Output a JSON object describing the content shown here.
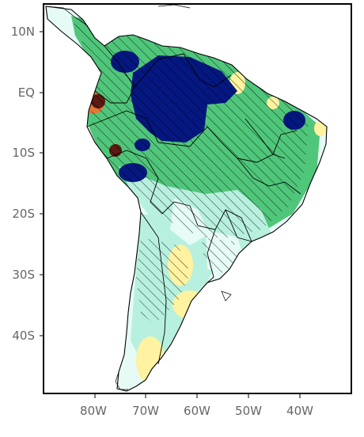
{
  "map": {
    "y_axis_labels": [
      "10N",
      "EQ",
      "10S",
      "20S",
      "30S",
      "40S"
    ],
    "x_axis_labels": [
      "80W",
      "70W",
      "60W",
      "50W",
      "40W"
    ],
    "lon_range": [
      -90,
      -30
    ],
    "lat_range": [
      -50,
      15
    ],
    "colors": {
      "ocean": "#ffffff",
      "very_wet": "#051780",
      "wet": "#50c67a",
      "moist": "#b7f0de",
      "near_zero": "#e6fbf6",
      "dry": "#fff2a0",
      "very_dry": "#5b1a12",
      "land_outline": "#000000",
      "hatch": "#000000",
      "text": "#666666"
    }
  }
}
